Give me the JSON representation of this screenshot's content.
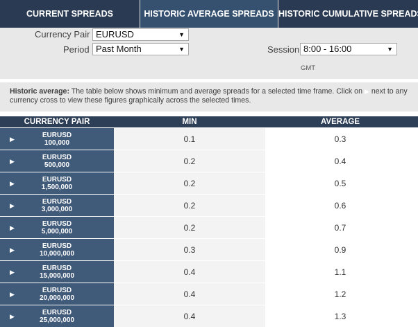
{
  "tabs": [
    {
      "label": "CURRENT SPREADS"
    },
    {
      "label": "HISTORIC AVERAGE SPREADS"
    },
    {
      "label": "HISTORIC CUMULATIVE SPREADS"
    }
  ],
  "filters": {
    "currency_pair_label": "Currency Pair",
    "currency_pair_value": "EURUSD",
    "period_label": "Period",
    "period_value": "Past Month",
    "session_label": "Session",
    "session_value": "8:00 - 16:00",
    "timezone": "GMT"
  },
  "info": {
    "heading": "Historic average:",
    "text_before_icon": " The table below shows minimum and average spreads for a selected time frame. Click on",
    "text_after_icon": "next to any currency cross to view these figures graphically across the selected times."
  },
  "table": {
    "headers": [
      "CURRENCY PAIR",
      "MIN",
      "AVERAGE"
    ],
    "rows": [
      {
        "pair": "EURUSD",
        "size": "100,000",
        "min": "0.1",
        "avg": "0.3"
      },
      {
        "pair": "EURUSD",
        "size": "500,000",
        "min": "0.2",
        "avg": "0.4"
      },
      {
        "pair": "EURUSD",
        "size": "1,500,000",
        "min": "0.2",
        "avg": "0.5"
      },
      {
        "pair": "EURUSD",
        "size": "3,000,000",
        "min": "0.2",
        "avg": "0.6"
      },
      {
        "pair": "EURUSD",
        "size": "5,000,000",
        "min": "0.2",
        "avg": "0.7"
      },
      {
        "pair": "EURUSD",
        "size": "10,000,000",
        "min": "0.3",
        "avg": "0.9"
      },
      {
        "pair": "EURUSD",
        "size": "15,000,000",
        "min": "0.4",
        "avg": "1.1"
      },
      {
        "pair": "EURUSD",
        "size": "20,000,000",
        "min": "0.4",
        "avg": "1.2"
      },
      {
        "pair": "EURUSD",
        "size": "25,000,000",
        "min": "0.4",
        "avg": "1.3"
      }
    ]
  },
  "icons": {
    "expand": "play-arrow-icon",
    "dropdown": "caret-down-icon"
  },
  "colors": {
    "tab_bg": "#2a3a52",
    "tab_active": "#35516f",
    "pair_bg": "#405a7a",
    "panel_bg": "#e8e8e8"
  }
}
